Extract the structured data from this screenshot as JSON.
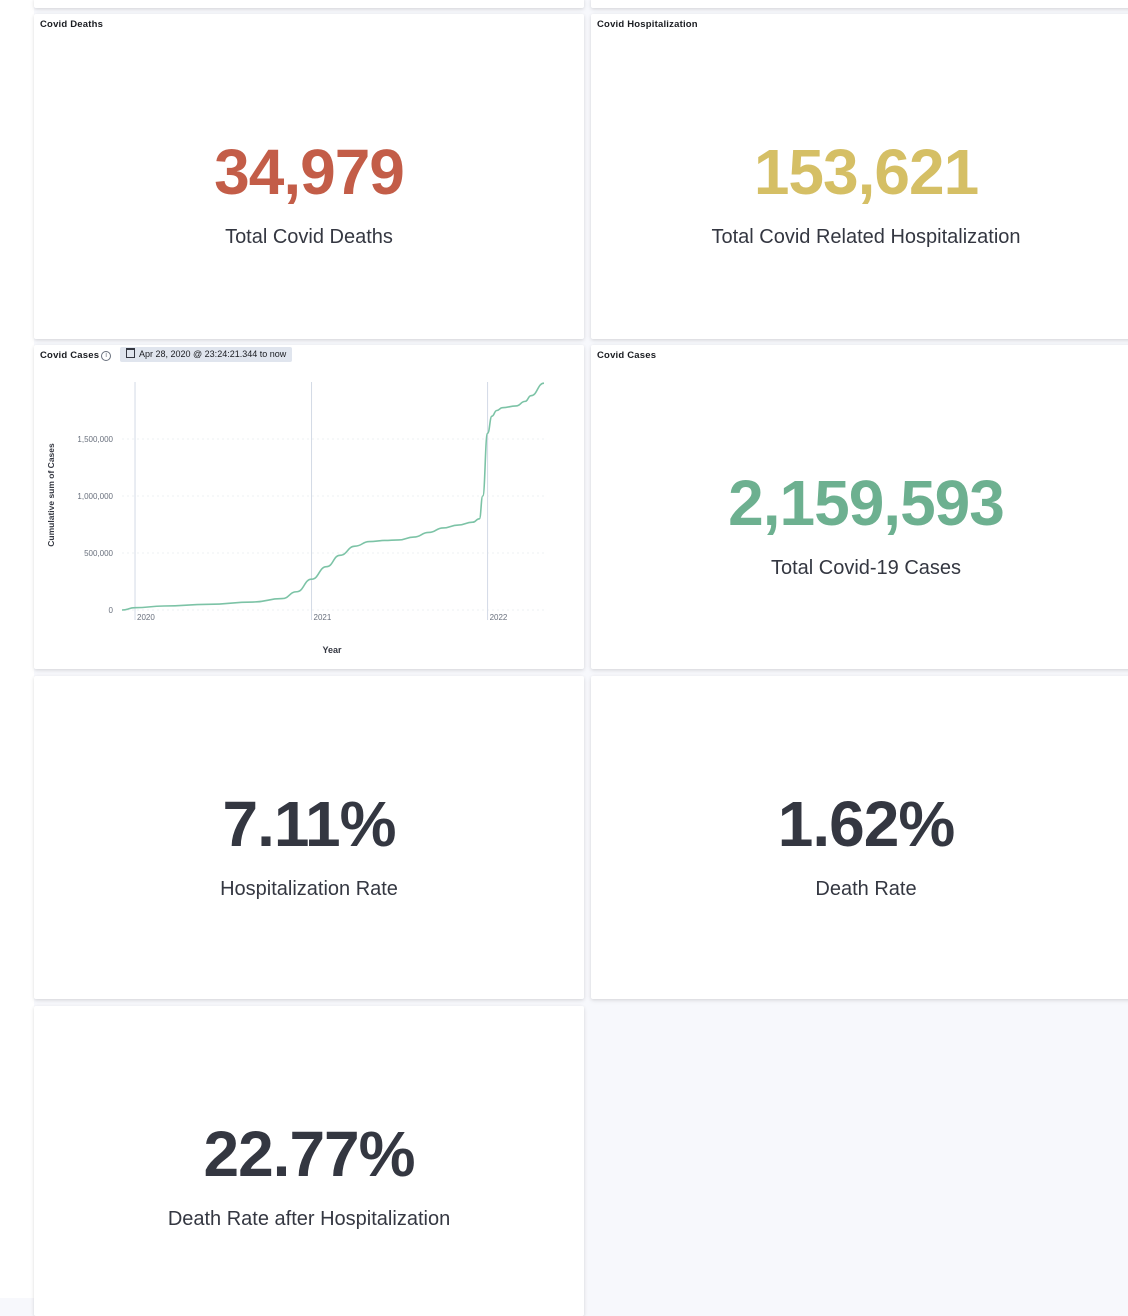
{
  "panels": {
    "deaths": {
      "title": "Covid Deaths",
      "value": "34,979",
      "label": "Total Covid Deaths",
      "color": "#c35d48"
    },
    "hospitalization": {
      "title": "Covid Hospitalization",
      "value": "153,621",
      "label": "Total Covid Related Hospitalization",
      "color": "#d5bf65"
    },
    "cases_chart": {
      "title": "Covid Cases",
      "time_range": "Apr 28, 2020 @ 23:24:21.344 to now",
      "info_icon": "info-icon",
      "calendar_icon": "calendar-icon"
    },
    "cases": {
      "title": "Covid Cases",
      "value": "2,159,593",
      "label": "Total Covid-19 Cases",
      "color": "#6db090"
    },
    "hosp_rate": {
      "value": "7.11%",
      "label": "Hospitalization Rate",
      "color": "#343741"
    },
    "death_rate": {
      "value": "1.62%",
      "label": "Death Rate",
      "color": "#343741"
    },
    "death_rate_after_hosp": {
      "value": "22.77%",
      "label": "Death Rate after Hospitalization",
      "color": "#343741"
    }
  },
  "chart_data": {
    "type": "line",
    "xlabel": "Year",
    "ylabel": "Cumulative sum of Cases",
    "ylim": [
      0,
      2000000
    ],
    "yticks": [
      0,
      500000,
      1000000,
      1500000
    ],
    "ytick_labels": [
      "0",
      "500,000",
      "1,000,000",
      "1,500,000"
    ],
    "xticks": [
      "2020",
      "2021",
      "2022"
    ],
    "xtick_values": [
      "2020-01-01",
      "2021-01-01",
      "2022-01-01"
    ],
    "xlim": [
      "2019-12-05",
      "2022-04-28"
    ],
    "grid": true,
    "line_color": "#7cc3a6",
    "series": [
      {
        "x": [
          "2019-12-05",
          "2020-01-01",
          "2020-03-01",
          "2020-06-01",
          "2020-09-01",
          "2020-11-01",
          "2020-12-01",
          "2021-01-01",
          "2021-02-01",
          "2021-03-01",
          "2021-04-01",
          "2021-05-01",
          "2021-06-01",
          "2021-07-01",
          "2021-08-01",
          "2021-09-01",
          "2021-10-01",
          "2021-11-01",
          "2021-12-01",
          "2021-12-15",
          "2021-12-22",
          "2022-01-01",
          "2022-01-10",
          "2022-01-20",
          "2022-02-01",
          "2022-03-01",
          "2022-03-20",
          "2022-04-01",
          "2022-04-28"
        ],
        "values": [
          0,
          20000,
          35000,
          50000,
          70000,
          100000,
          160000,
          270000,
          380000,
          480000,
          560000,
          600000,
          610000,
          615000,
          640000,
          680000,
          720000,
          745000,
          770000,
          800000,
          1000000,
          1550000,
          1700000,
          1750000,
          1775000,
          1790000,
          1830000,
          1880000,
          1990000
        ]
      }
    ]
  }
}
